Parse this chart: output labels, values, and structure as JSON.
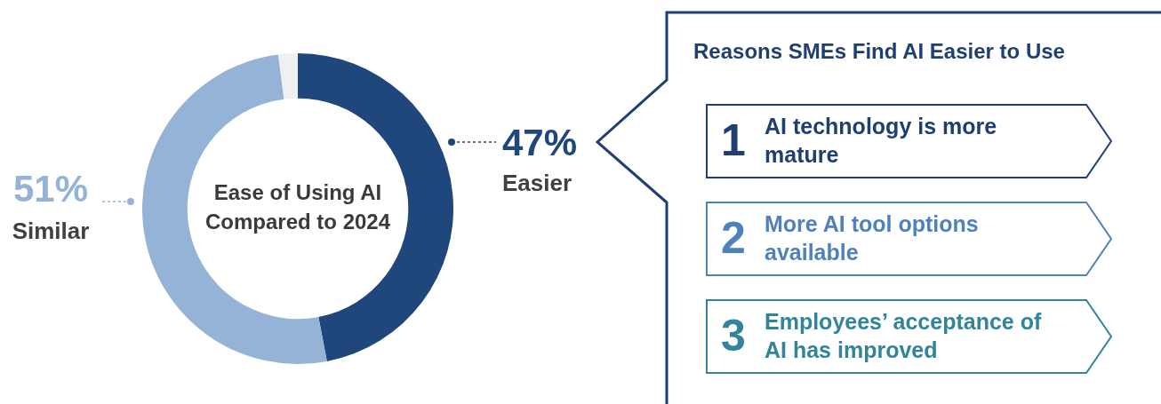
{
  "chart_data": [
    {
      "type": "donut",
      "title": "Ease of Using AI Compared to 2024",
      "categories": [
        "Easier",
        "Similar",
        null
      ],
      "values": [
        47,
        51,
        2
      ],
      "colors": [
        "#1f477b",
        "#95b3d7",
        "#f0f0f0"
      ],
      "value_labels": [
        "47%",
        "51%",
        null
      ],
      "legend": false
    },
    {
      "type": "other",
      "title": "Reasons SMEs Find AI Easier to Use",
      "annotations": [
        "1",
        "AI technology is more mature",
        "2",
        "More AI tool options available",
        "3",
        "Employees’ acceptance of AI has improved"
      ]
    }
  ]
}
